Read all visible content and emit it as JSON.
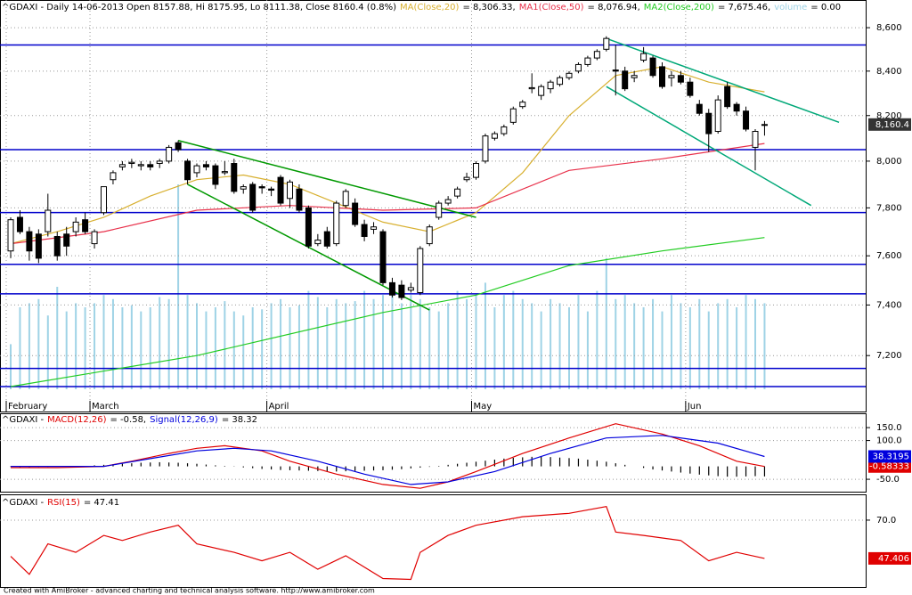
{
  "chart_data": [
    {
      "type": "candlestick",
      "title": "^GDAXI - Daily 14-06-2013 Open 8157.88, Hi 8175.95, Lo 8111.38, Close 8160.4 (0.8%)",
      "categories": [
        "February",
        null,
        null,
        null,
        null,
        null,
        null,
        null,
        null,
        "March",
        null,
        null,
        null,
        null,
        null,
        null,
        null,
        null,
        null,
        null,
        null,
        null,
        null,
        null,
        null,
        null,
        null,
        null,
        "April",
        null,
        null,
        null,
        null,
        null,
        null,
        null,
        null,
        null,
        null,
        null,
        null,
        null,
        null,
        null,
        null,
        null,
        null,
        null,
        null,
        null,
        "May",
        null,
        null,
        null,
        null,
        null,
        null,
        null,
        null,
        null,
        null,
        null,
        null,
        null,
        null,
        null,
        null,
        null,
        null,
        null,
        null,
        null,
        null,
        "Jun",
        null,
        null,
        null,
        null,
        null,
        null,
        null,
        null
      ],
      "open": [
        7620,
        7760,
        7700,
        7690,
        7700,
        7680,
        7690,
        7700,
        7750,
        7650,
        7780,
        7920,
        7975,
        7990,
        7980,
        7985,
        7990,
        8000,
        8080,
        8000,
        7950,
        7985,
        7980,
        7950,
        7990,
        7880,
        7900,
        7890,
        7880,
        7930,
        7840,
        7880,
        7800,
        7650,
        7700,
        7650,
        7810,
        7820,
        7730,
        7710,
        7700,
        7490,
        7480,
        7460,
        7450,
        7650,
        7760,
        7820,
        7850,
        7920,
        7930,
        8000,
        8100,
        8120,
        8170,
        8240,
        8320,
        8290,
        8320,
        8340,
        8370,
        8400,
        8430,
        8460,
        8500,
        8405,
        8400,
        8370,
        8450,
        8460,
        8420,
        8370,
        8380,
        8350,
        8250,
        8210,
        8130,
        8330,
        8250,
        8220,
        8060,
        8157.88
      ],
      "high": [
        7760,
        7790,
        7720,
        7710,
        7860,
        7700,
        7720,
        7760,
        7780,
        7710,
        7890,
        7960,
        8000,
        8010,
        8000,
        8000,
        8010,
        8070,
        8090,
        8010,
        7990,
        8000,
        7990,
        8000,
        8010,
        7900,
        7910,
        7900,
        7890,
        7940,
        7920,
        7900,
        7810,
        7690,
        7720,
        7830,
        7880,
        7840,
        7750,
        7740,
        7710,
        7510,
        7500,
        7490,
        7640,
        7730,
        7830,
        7850,
        7890,
        7950,
        8000,
        8120,
        8130,
        8160,
        8240,
        8270,
        8390,
        8340,
        8360,
        8380,
        8400,
        8440,
        8470,
        8500,
        8560,
        8520,
        8420,
        8400,
        8510,
        8470,
        8440,
        8400,
        8400,
        8370,
        8270,
        8230,
        8290,
        8350,
        8260,
        8240,
        8140,
        8175.95
      ],
      "low": [
        7590,
        7690,
        7580,
        7570,
        7680,
        7580,
        7600,
        7680,
        7690,
        7630,
        7770,
        7900,
        7960,
        7970,
        7960,
        7960,
        7970,
        7990,
        8040,
        7900,
        7930,
        7960,
        7880,
        7940,
        7860,
        7860,
        7780,
        7860,
        7850,
        7810,
        7800,
        7780,
        7630,
        7640,
        7630,
        7640,
        7800,
        7720,
        7660,
        7690,
        7480,
        7430,
        7420,
        7450,
        7440,
        7640,
        7750,
        7810,
        7840,
        7910,
        7920,
        7990,
        8090,
        8110,
        8160,
        8230,
        8300,
        8270,
        8300,
        8330,
        8360,
        8390,
        8420,
        8450,
        8490,
        8290,
        8310,
        8350,
        8440,
        8370,
        8320,
        8330,
        8340,
        8280,
        8200,
        8040,
        8120,
        8230,
        8200,
        8130,
        7960,
        8111.38
      ],
      "close": [
        7750,
        7700,
        7620,
        7590,
        7790,
        7600,
        7640,
        7740,
        7700,
        7700,
        7890,
        7950,
        7985,
        7995,
        7985,
        7975,
        8000,
        8060,
        8050,
        7920,
        7980,
        7975,
        7900,
        7955,
        7870,
        7890,
        7790,
        7885,
        7875,
        7820,
        7910,
        7790,
        7640,
        7665,
        7640,
        7820,
        7870,
        7730,
        7680,
        7720,
        7490,
        7440,
        7430,
        7470,
        7630,
        7720,
        7820,
        7835,
        7880,
        7930,
        7990,
        8110,
        8120,
        8150,
        8230,
        8260,
        8325,
        8330,
        8350,
        8370,
        8390,
        8430,
        8460,
        8490,
        8550,
        8400,
        8320,
        8380,
        8480,
        8380,
        8330,
        8380,
        8350,
        8290,
        8210,
        8120,
        8270,
        8240,
        8220,
        8140,
        8130,
        8160.4
      ],
      "value_labels": [
        null,
        null,
        null,
        null,
        null,
        null,
        null,
        null,
        null,
        null,
        null,
        null,
        null,
        null,
        null,
        null,
        null,
        null,
        null,
        null,
        null,
        null,
        null,
        null,
        null,
        null,
        null,
        null,
        null,
        null,
        null,
        null,
        null,
        null,
        null,
        null,
        null,
        null,
        null,
        null,
        null,
        null,
        null,
        null,
        null,
        null,
        null,
        null,
        null,
        null,
        null,
        null,
        null,
        null,
        null,
        null,
        null,
        null,
        null,
        null,
        null,
        null,
        null,
        null,
        null,
        null,
        null,
        null,
        null,
        null,
        null,
        null,
        null,
        null,
        null,
        null,
        null,
        null,
        null,
        null,
        null,
        "8,160.4"
      ],
      "series": [
        {
          "name": "MA(Close,20)",
          "legend_value": "= 8,306.33,",
          "color": "#d8b030",
          "x": [
            0,
            5,
            10,
            15,
            20,
            25,
            30,
            35,
            40,
            45,
            50,
            55,
            60,
            65,
            70,
            75,
            81
          ],
          "values": [
            7650,
            7700,
            7760,
            7850,
            7920,
            7940,
            7900,
            7820,
            7740,
            7700,
            7780,
            7950,
            8200,
            8380,
            8420,
            8350,
            8306.33
          ]
        },
        {
          "name": "MA1(Close,50)",
          "legend_value": "= 8,076.94,",
          "color": "#e8304a",
          "x": [
            0,
            10,
            20,
            30,
            40,
            50,
            60,
            70,
            81
          ],
          "values": [
            7650,
            7700,
            7790,
            7810,
            7790,
            7800,
            7960,
            8010,
            8076.94
          ]
        },
        {
          "name": "MA2(Close,200)",
          "legend_value": "= 7,675.46,",
          "color": "#22cc22",
          "x": [
            0,
            20,
            40,
            50,
            60,
            70,
            81
          ],
          "values": [
            7080,
            7200,
            7370,
            7440,
            7560,
            7620,
            7675.46
          ]
        }
      ],
      "volume": {
        "name": "volume",
        "legend_value": "= 0.00",
        "color": "#9fd3e6",
        "ylim": [
          0,
          100
        ],
        "values": [
          22,
          40,
          42,
          44,
          36,
          50,
          38,
          42,
          40,
          42,
          46,
          44,
          40,
          41,
          38,
          40,
          45,
          44,
          100,
          46,
          42,
          38,
          40,
          43,
          38,
          36,
          40,
          39,
          42,
          44,
          40,
          41,
          48,
          45,
          40,
          44,
          42,
          43,
          48,
          44,
          46,
          50,
          42,
          46,
          44,
          40,
          38,
          42,
          48,
          44,
          46,
          52,
          40,
          46,
          48,
          44,
          42,
          38,
          44,
          42,
          40,
          46,
          38,
          48,
          64,
          44,
          46,
          42,
          40,
          44,
          38,
          46,
          42,
          40,
          44,
          38,
          42,
          44,
          40,
          46,
          44,
          42
        ]
      },
      "hlines": [
        8520,
        8050,
        7780,
        7565,
        7445,
        7150,
        7080
      ],
      "hline_color": "#0000cc",
      "trendlines": [
        {
          "color": "#009900",
          "x": [
            18,
            50
          ],
          "values": [
            8090,
            7760
          ]
        },
        {
          "color": "#009900",
          "x": [
            19,
            45
          ],
          "values": [
            7900,
            7380
          ]
        },
        {
          "color": "#00a878",
          "x": [
            64,
            89
          ],
          "values": [
            8550,
            8170
          ]
        },
        {
          "color": "#00a878",
          "x": [
            64,
            86
          ],
          "values": [
            8330,
            7810
          ]
        }
      ],
      "log": true,
      "grid": true,
      "ylim": [
        6985,
        8730
      ],
      "yticks": [
        {
          "value": 8600,
          "label": "8,600"
        },
        {
          "value": 8400,
          "label": "8,400"
        },
        {
          "value": 8200,
          "label": "8,200"
        },
        {
          "value": 8000,
          "label": "8,000"
        },
        {
          "value": 7800,
          "label": "7,800"
        },
        {
          "value": 7600,
          "label": "7,600"
        },
        {
          "value": 7400,
          "label": "7,400"
        },
        {
          "value": 7200,
          "label": "7,200"
        }
      ]
    },
    {
      "type": "line",
      "title": "^GDAXI -",
      "series": [
        {
          "name": "MACD(12,26)",
          "legend_value": "= -0.58,",
          "color": "#e00000",
          "x": [
            0,
            5,
            10,
            13,
            17,
            20,
            23,
            27,
            30,
            35,
            40,
            44,
            47,
            50,
            55,
            60,
            65,
            70,
            74,
            78,
            81
          ],
          "values": [
            -5,
            -5,
            0,
            20,
            50,
            70,
            80,
            60,
            20,
            -30,
            -70,
            -85,
            -60,
            -20,
            50,
            110,
            165,
            125,
            80,
            20,
            -0.58333
          ],
          "value_labels": [
            null,
            null,
            null,
            null,
            null,
            null,
            null,
            null,
            null,
            null,
            null,
            null,
            null,
            null,
            null,
            null,
            null,
            null,
            null,
            null,
            "-0.58333"
          ]
        },
        {
          "name": "Signal(12,26,9)",
          "legend_value": "= 38.32",
          "color": "#0000dd",
          "x": [
            0,
            10,
            15,
            20,
            24,
            28,
            33,
            38,
            43,
            47,
            52,
            58,
            64,
            70,
            76,
            81
          ],
          "values": [
            0,
            0,
            30,
            60,
            70,
            60,
            20,
            -30,
            -70,
            -60,
            -20,
            50,
            110,
            120,
            90,
            38.3195
          ],
          "value_labels": [
            null,
            null,
            null,
            null,
            null,
            null,
            null,
            null,
            null,
            null,
            null,
            null,
            null,
            null,
            null,
            "38.3195"
          ]
        }
      ],
      "histogram": {
        "color": "#000000",
        "values": [
          -2,
          -3,
          -3,
          -2,
          -2,
          -1,
          0,
          1,
          2,
          4,
          6,
          8,
          10,
          12,
          14,
          15,
          16,
          15,
          14,
          12,
          10,
          7,
          4,
          2,
          -1,
          -4,
          -7,
          -10,
          -12,
          -14,
          -15,
          -16,
          -17,
          -18,
          -19,
          -20,
          -19,
          -18,
          -17,
          -16,
          -15,
          -13,
          -11,
          -8,
          -5,
          -2,
          2,
          6,
          10,
          14,
          18,
          22,
          26,
          30,
          33,
          35,
          37,
          38,
          36,
          34,
          32,
          30,
          26,
          22,
          18,
          12,
          6,
          0,
          -6,
          -12,
          -16,
          -20,
          -24,
          -28,
          -32,
          -35,
          -38,
          -40,
          -40,
          -39,
          -38,
          -39
        ]
      },
      "grid": true,
      "ylim": [
        -98,
        202
      ],
      "yticks": [
        {
          "value": 150,
          "label": "150.0"
        },
        {
          "value": 100,
          "label": "100.0"
        },
        {
          "value": -50,
          "label": "-50.0"
        }
      ]
    },
    {
      "type": "line",
      "title": "^GDAXI -",
      "series": [
        {
          "name": "RSI(15)",
          "legend_value": "= 47.41",
          "color": "#e00000",
          "x": [
            0,
            2,
            4,
            7,
            10,
            12,
            15,
            18,
            20,
            24,
            27,
            30,
            33,
            36,
            40,
            43,
            44,
            47,
            50,
            55,
            60,
            64,
            65,
            68,
            72,
            75,
            78,
            81
          ],
          "values": [
            48.6,
            38,
            56,
            51,
            61,
            58,
            63,
            67,
            56,
            51,
            46,
            51,
            41,
            49,
            35.5,
            35,
            51,
            61,
            67,
            72,
            74,
            78,
            63,
            61,
            58,
            46,
            51,
            47.406
          ],
          "value_labels": [
            null,
            null,
            null,
            null,
            null,
            null,
            null,
            null,
            null,
            null,
            null,
            null,
            null,
            null,
            null,
            null,
            null,
            null,
            null,
            null,
            null,
            null,
            null,
            null,
            null,
            null,
            null,
            "47.406"
          ]
        }
      ],
      "grid": true,
      "ylim": [
        30,
        84.7
      ],
      "yticks": [
        {
          "value": 70,
          "label": "70.0"
        }
      ]
    }
  ],
  "footer": "Created with AmiBroker - advanced charting and technical analysis software. http://www.amibroker.com"
}
